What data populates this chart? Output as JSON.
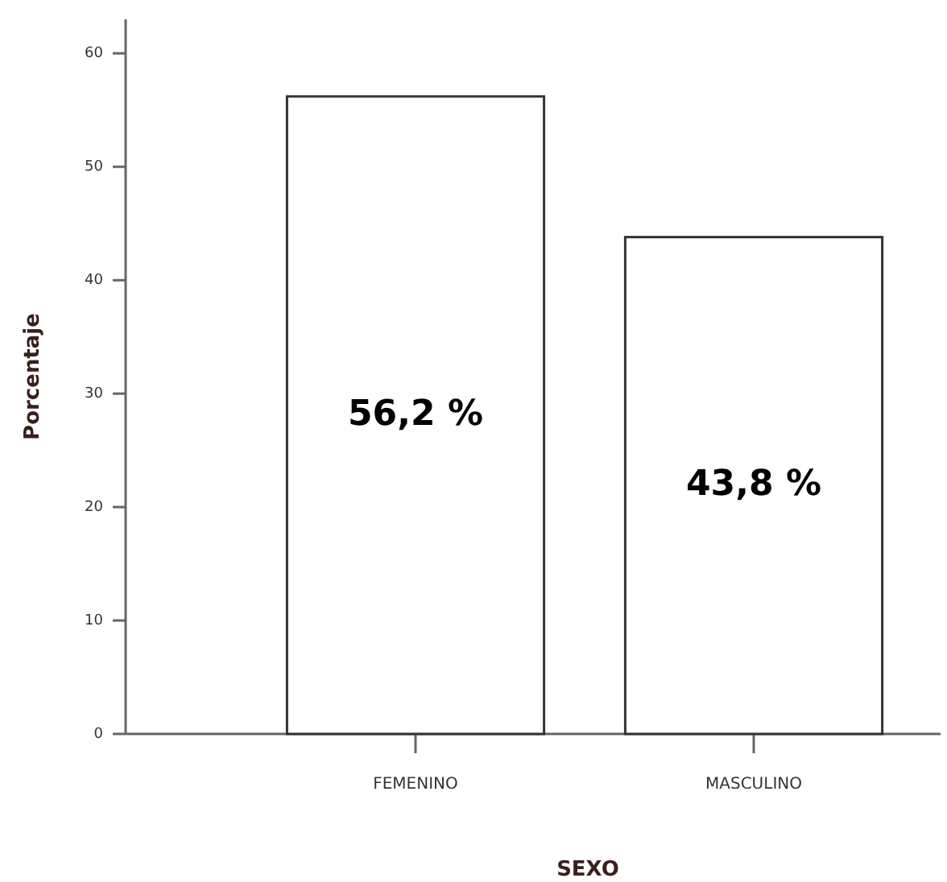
{
  "chart_data": {
    "type": "bar",
    "xlabel": "SEXO",
    "ylabel": "Porcentaje",
    "categories": [
      "FEMENINO",
      "MASCULINO"
    ],
    "values": [
      56.2,
      43.8
    ],
    "color": "#ffffff",
    "value_labels": [
      "56,2 %",
      "43,8 %"
    ],
    "ylim": [
      0,
      63
    ],
    "yticks": [
      0,
      10,
      20,
      30,
      40,
      50,
      60
    ]
  }
}
